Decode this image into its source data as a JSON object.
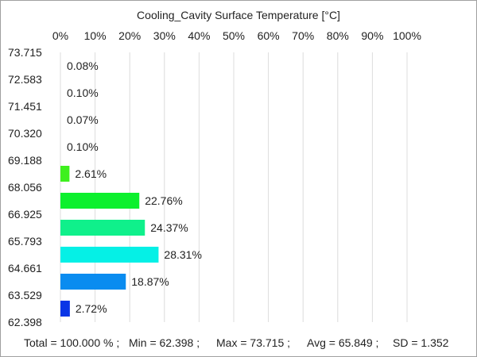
{
  "chart_data": {
    "type": "bar",
    "orientation": "horizontal",
    "title": "Cooling_Cavity Surface Temperature [°C]",
    "x_axis": {
      "position": "top",
      "range": [
        0,
        100
      ],
      "tick_labels": [
        "0%",
        "10%",
        "20%",
        "30%",
        "40%",
        "50%",
        "60%",
        "70%",
        "80%",
        "90%",
        "100%"
      ]
    },
    "y_axis": {
      "tick_labels": [
        "73.715",
        "72.583",
        "71.451",
        "70.320",
        "69.188",
        "68.056",
        "66.925",
        "65.793",
        "64.661",
        "63.529",
        "62.398"
      ]
    },
    "grid": true,
    "bins": [
      {
        "low": 72.583,
        "high": 73.715,
        "value": 0.08,
        "label": "0.08%",
        "color": "#0044ff"
      },
      {
        "low": 71.451,
        "high": 72.583,
        "value": 0.1,
        "label": "0.10%",
        "color": "#0044ff"
      },
      {
        "low": 70.32,
        "high": 71.451,
        "value": 0.07,
        "label": "0.07%",
        "color": "#0044ff"
      },
      {
        "low": 69.188,
        "high": 70.32,
        "value": 0.1,
        "label": "0.10%",
        "color": "#0044ff"
      },
      {
        "low": 68.056,
        "high": 69.188,
        "value": 2.61,
        "label": "2.61%",
        "color": "#3ef01e"
      },
      {
        "low": 66.925,
        "high": 68.056,
        "value": 22.76,
        "label": "22.76%",
        "color": "#0df02e"
      },
      {
        "low": 65.793,
        "high": 66.925,
        "value": 24.37,
        "label": "24.37%",
        "color": "#0ff08b"
      },
      {
        "low": 64.661,
        "high": 65.793,
        "value": 28.31,
        "label": "28.31%",
        "color": "#05f0e6"
      },
      {
        "low": 63.529,
        "high": 64.661,
        "value": 18.87,
        "label": "18.87%",
        "color": "#0a8cf0"
      },
      {
        "low": 62.398,
        "high": 63.529,
        "value": 2.72,
        "label": "2.72%",
        "color": "#0a36e6"
      }
    ]
  },
  "footer": {
    "total": "Total = 100.000 % ;",
    "min": "Min = 62.398 ;",
    "max": "Max = 73.715 ;",
    "avg": "Avg = 65.849 ;",
    "sd": "SD = 1.352"
  }
}
